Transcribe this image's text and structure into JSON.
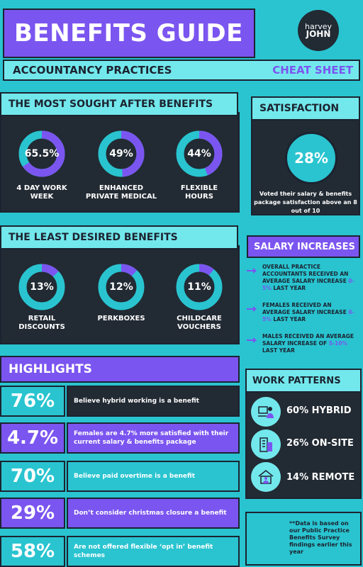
{
  "header": {
    "title": "BENEFITS GUIDE",
    "logo_line1": "harvey",
    "logo_line2": "JOHN",
    "subtitle_left": "ACCOUNTANCY PRACTICES",
    "subtitle_right": "CHEAT SHEET"
  },
  "sought": {
    "heading": "THE MOST SOUGHT AFTER BENEFITS",
    "items": [
      {
        "value": "65.5%",
        "fraction": 0.655,
        "label": "4 DAY WORK\nWEEK"
      },
      {
        "value": "49%",
        "fraction": 0.49,
        "label": "ENHANCED\nPRIVATE MEDICAL"
      },
      {
        "value": "44%",
        "fraction": 0.44,
        "label": "FLEXIBLE\nHOURS"
      }
    ]
  },
  "least": {
    "heading": "THE LEAST DESIRED BENEFITS",
    "items": [
      {
        "value": "13%",
        "fraction": 0.13,
        "label": "RETAIL\nDISCOUNTS"
      },
      {
        "value": "12%",
        "fraction": 0.12,
        "label": "PERKBOXES"
      },
      {
        "value": "11%",
        "fraction": 0.11,
        "label": "CHILDCARE\nVOUCHERS"
      }
    ]
  },
  "satisfaction": {
    "heading": "SATISFACTION",
    "value": "28%",
    "text": "Voted their salary & benefits package  satisfaction above an 8 out of 10"
  },
  "salary": {
    "heading": "SALARY INCREASES",
    "items": [
      {
        "pre": "OVERALL PRACTICE ACCOUNTANTS RECEIVED AN AVERAGE SALARY INCREASE ",
        "hl": "0-5%",
        "post": " LAST YEAR"
      },
      {
        "pre": "FEMALES RECEIVED AN AVERAGE SALARY INCREASE ",
        "hl": "0-5%",
        "post": " LAST YEAR"
      },
      {
        "pre": "MALES RECEIVED AN AVERAGE SALARY INCREASE OF ",
        "hl": "5-10%",
        "post": " LAST YEAR"
      }
    ]
  },
  "highlights": {
    "heading": "HIGHLIGHTS",
    "rows": [
      {
        "num": "76%",
        "text": "Believe hybrid working is a benefit"
      },
      {
        "num": "4.7%",
        "text": "Females are  4.7% more satisfied with their current salary  & benefits package"
      },
      {
        "num": "70%",
        "text": "Believe paid overtime is a benefit"
      },
      {
        "num": "29%",
        "text": "Don’t consider christmas closure a benefit"
      },
      {
        "num": "58%",
        "text": "Are not offered flexible ‘opt in’ benefit schemes"
      }
    ]
  },
  "work": {
    "heading": "WORK PATTERNS",
    "items": [
      {
        "label": "60% HYBRID",
        "icon": "hybrid-worker-icon"
      },
      {
        "label": "26% ON-SITE",
        "icon": "office-building-icon"
      },
      {
        "label": "14% REMOTE",
        "icon": "home-worker-icon"
      }
    ]
  },
  "footnote": "**Data is based on our Public Practice Benefits  Survey findings earlier this year",
  "colors": {
    "teal": "#29c4d0",
    "light_teal": "#72e8ec",
    "purple": "#7b55f0",
    "dark": "#222a33"
  }
}
